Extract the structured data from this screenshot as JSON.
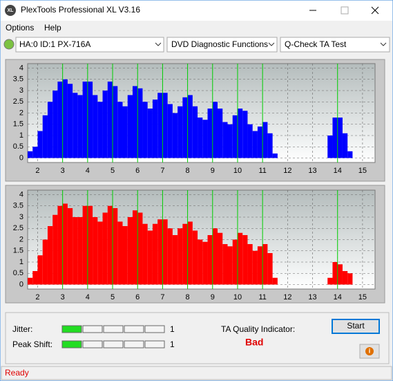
{
  "window": {
    "title": "PlexTools Professional XL V3.16"
  },
  "menu": [
    "Options",
    "Help"
  ],
  "toolbar": {
    "drive": "HA:0 ID:1  PX-716A",
    "function": "DVD Diagnostic Functions",
    "test": "Q-Check TA Test"
  },
  "plots": [
    {
      "type": "bar",
      "color": "#0000ff",
      "marker_color": "#00d000",
      "grid": true,
      "xlim": [
        1.6,
        15.5
      ],
      "ylim": [
        -0.2,
        4.2
      ],
      "xticks": [
        2,
        3,
        4,
        5,
        6,
        7,
        8,
        9,
        10,
        11,
        12,
        13,
        14,
        15
      ],
      "yticks": [
        0,
        0.5,
        1,
        1.5,
        2,
        2.5,
        3,
        3.5,
        4
      ],
      "marker_lines": [
        3,
        4,
        5,
        6,
        7,
        8,
        9,
        10,
        11,
        14
      ],
      "x": [
        1.7,
        1.9,
        2.1,
        2.3,
        2.5,
        2.7,
        2.9,
        3.1,
        3.3,
        3.5,
        3.7,
        3.9,
        4.1,
        4.3,
        4.5,
        4.7,
        4.9,
        5.1,
        5.3,
        5.5,
        5.7,
        5.9,
        6.1,
        6.3,
        6.5,
        6.7,
        6.9,
        7.1,
        7.3,
        7.5,
        7.7,
        7.9,
        8.1,
        8.3,
        8.5,
        8.7,
        8.9,
        9.1,
        9.3,
        9.5,
        9.7,
        9.9,
        10.1,
        10.3,
        10.5,
        10.7,
        10.9,
        11.1,
        11.3,
        11.5,
        13.7,
        13.9,
        14.1,
        14.3,
        14.5
      ],
      "values": [
        0.3,
        0.5,
        1.2,
        1.9,
        2.5,
        3.0,
        3.4,
        3.5,
        3.3,
        2.9,
        2.8,
        3.4,
        3.4,
        2.8,
        2.5,
        3.0,
        3.4,
        3.2,
        2.5,
        2.3,
        2.8,
        3.2,
        3.1,
        2.5,
        2.2,
        2.6,
        2.9,
        2.9,
        2.4,
        2.0,
        2.3,
        2.7,
        2.8,
        2.3,
        1.8,
        1.7,
        2.2,
        2.5,
        2.2,
        1.6,
        1.5,
        1.9,
        2.2,
        2.1,
        1.5,
        1.2,
        1.4,
        1.6,
        1.1,
        0.2,
        1.0,
        1.8,
        1.8,
        1.1,
        0.3
      ]
    },
    {
      "type": "bar",
      "color": "#ff0000",
      "marker_color": "#00d000",
      "grid": true,
      "xlim": [
        1.6,
        15.5
      ],
      "ylim": [
        -0.2,
        4.2
      ],
      "xticks": [
        2,
        3,
        4,
        5,
        6,
        7,
        8,
        9,
        10,
        11,
        12,
        13,
        14,
        15
      ],
      "yticks": [
        0,
        0.5,
        1,
        1.5,
        2,
        2.5,
        3,
        3.5,
        4
      ],
      "marker_lines": [
        3,
        4,
        5,
        6,
        7,
        8,
        9,
        10,
        11,
        14
      ],
      "x": [
        1.7,
        1.9,
        2.1,
        2.3,
        2.5,
        2.7,
        2.9,
        3.1,
        3.3,
        3.5,
        3.7,
        3.9,
        4.1,
        4.3,
        4.5,
        4.7,
        4.9,
        5.1,
        5.3,
        5.5,
        5.7,
        5.9,
        6.1,
        6.3,
        6.5,
        6.7,
        6.9,
        7.1,
        7.3,
        7.5,
        7.7,
        7.9,
        8.1,
        8.3,
        8.5,
        8.7,
        8.9,
        9.1,
        9.3,
        9.5,
        9.7,
        9.9,
        10.1,
        10.3,
        10.5,
        10.7,
        10.9,
        11.1,
        11.3,
        11.5,
        13.7,
        13.9,
        14.1,
        14.3,
        14.5
      ],
      "values": [
        0.3,
        0.6,
        1.3,
        2.0,
        2.6,
        3.1,
        3.5,
        3.6,
        3.4,
        3.0,
        3.0,
        3.5,
        3.5,
        3.0,
        2.8,
        3.2,
        3.5,
        3.4,
        2.8,
        2.6,
        3.0,
        3.3,
        3.2,
        2.7,
        2.4,
        2.7,
        2.9,
        2.9,
        2.5,
        2.2,
        2.5,
        2.7,
        2.8,
        2.4,
        2.0,
        1.9,
        2.2,
        2.5,
        2.3,
        1.8,
        1.7,
        2.0,
        2.3,
        2.2,
        1.8,
        1.5,
        1.7,
        1.8,
        1.4,
        0.3,
        0.3,
        1.0,
        0.9,
        0.6,
        0.5
      ]
    }
  ],
  "results": {
    "jitter": {
      "label": "Jitter:",
      "value": 1
    },
    "peak_shift": {
      "label": "Peak Shift:",
      "value": 1
    },
    "ta_quality": {
      "label": "TA Quality Indicator:",
      "value": "Bad"
    }
  },
  "buttons": {
    "start": "Start"
  },
  "status": "Ready"
}
